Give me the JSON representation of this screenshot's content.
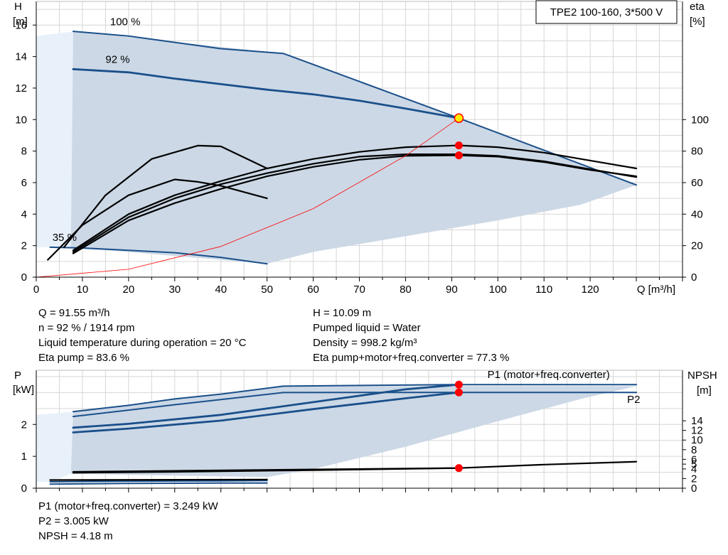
{
  "colors": {
    "curve": "#1a4f8a",
    "area": "#ccd8e6",
    "area_light": "#e8f1fa",
    "grid": "#d6d6d6",
    "duty_point": "#ff0000",
    "duty_marker_fill": "#ffee00",
    "system_curve": "#ff0000"
  },
  "chart_data": [
    {
      "type": "line",
      "title": "TPE2 100-160, 3*500 V",
      "xlabel": "Q [m³/h]",
      "ylabel": [
        "H",
        "[m]"
      ],
      "y2label": [
        "eta",
        "[%]"
      ],
      "xlim": [
        0,
        140
      ],
      "ylim": [
        0,
        17.5
      ],
      "y2lim": [
        0,
        175
      ],
      "x_ticks": [
        0,
        10,
        20,
        30,
        40,
        50,
        60,
        70,
        80,
        90,
        100,
        110,
        120
      ],
      "y_ticks": [
        0,
        2,
        4,
        6,
        8,
        10,
        12,
        14,
        16
      ],
      "y2_ticks": [
        0,
        20,
        40,
        60,
        80,
        100
      ],
      "grid": true,
      "curve_labels": [
        {
          "text": "100 %",
          "x": 16,
          "y": 16.0
        },
        {
          "text": "92 %",
          "x": 15,
          "y": 13.6
        },
        {
          "text": "35 %",
          "x": 3.5,
          "y": 2.3
        }
      ],
      "operating_area": [
        [
          8,
          15.6
        ],
        [
          53.5,
          14.2
        ],
        [
          130,
          5.85
        ],
        [
          118,
          4.6
        ],
        [
          100,
          3.6
        ],
        [
          80,
          2.6
        ],
        [
          60,
          1.6
        ],
        [
          50,
          0.85
        ],
        [
          7.5,
          1.9
        ]
      ],
      "series": [
        {
          "role": "H",
          "speed": "100 %",
          "points": [
            [
              8,
              15.6
            ],
            [
              20,
              15.3
            ],
            [
              30,
              14.9
            ],
            [
              40,
              14.5
            ],
            [
              53.5,
              14.2
            ],
            [
              91.55,
              10.09
            ],
            [
              130,
              5.85
            ]
          ]
        },
        {
          "role": "H",
          "speed": "92 %",
          "points": [
            [
              8,
              13.2
            ],
            [
              20,
              13.0
            ],
            [
              30,
              12.6
            ],
            [
              40,
              12.25
            ],
            [
              50,
              11.9
            ],
            [
              60,
              11.6
            ],
            [
              70,
              11.2
            ],
            [
              80,
              10.7
            ],
            [
              91.55,
              10.09
            ]
          ]
        },
        {
          "role": "H",
          "speed": "35 %",
          "points": [
            [
              3,
              1.9
            ],
            [
              10,
              1.85
            ],
            [
              20,
              1.7
            ],
            [
              30,
              1.55
            ],
            [
              40,
              1.25
            ],
            [
              50,
              0.85
            ]
          ]
        },
        {
          "role": "eta",
          "points": [
            [
              8,
              15
            ],
            [
              20,
              36
            ],
            [
              30,
              47
            ],
            [
              40,
              56
            ],
            [
              50,
              64
            ],
            [
              60,
              70
            ],
            [
              70,
              74.5
            ],
            [
              80,
              77
            ],
            [
              91.55,
              77.3
            ],
            [
              100,
              76.5
            ],
            [
              110,
              73
            ],
            [
              120,
              68
            ],
            [
              130,
              64
            ]
          ]
        },
        {
          "role": "eta",
          "points": [
            [
              8,
              16
            ],
            [
              20,
              38
            ],
            [
              30,
              50
            ],
            [
              40,
              59
            ],
            [
              50,
              66
            ],
            [
              60,
              72
            ],
            [
              70,
              76.5
            ],
            [
              80,
              78
            ],
            [
              91.55,
              78
            ],
            [
              100,
              77
            ],
            [
              110,
              73.5
            ],
            [
              120,
              68.5
            ],
            [
              130,
              63.5
            ]
          ]
        },
        {
          "role": "eta",
          "points": [
            [
              8,
              17
            ],
            [
              20,
              40
            ],
            [
              30,
              52
            ],
            [
              40,
              61
            ],
            [
              50,
              69
            ],
            [
              60,
              75
            ],
            [
              70,
              79.5
            ],
            [
              80,
              82.5
            ],
            [
              91.55,
              83.6
            ],
            [
              100,
              82.5
            ],
            [
              110,
              79
            ],
            [
              120,
              74
            ],
            [
              130,
              69
            ]
          ]
        },
        {
          "role": "eta",
          "points": [
            [
              2.5,
              11
            ],
            [
              10,
              33
            ],
            [
              20,
              52
            ],
            [
              30,
              62
            ],
            [
              35,
              60.5
            ],
            [
              40,
              58
            ],
            [
              50,
              50
            ]
          ]
        },
        {
          "role": "eta",
          "points": [
            [
              6,
              19
            ],
            [
              15,
              52
            ],
            [
              25,
              75
            ],
            [
              35,
              83.5
            ],
            [
              40,
              83
            ],
            [
              50,
              69
            ]
          ]
        },
        {
          "role": "system",
          "points": [
            [
              0,
              0
            ],
            [
              20,
              0.5
            ],
            [
              40,
              1.95
            ],
            [
              60,
              4.35
            ],
            [
              80,
              7.7
            ],
            [
              91.55,
              10.09
            ]
          ]
        }
      ],
      "duty_points": [
        {
          "name": "H",
          "x": 91.55,
          "y": 10.09
        },
        {
          "name": "Eta pump",
          "x": 91.55,
          "y2": 83.6
        },
        {
          "name": "Eta pump+motor+freq.converter",
          "x": 91.55,
          "y2": 77.3
        }
      ]
    },
    {
      "type": "line",
      "xlim": [
        0,
        140
      ],
      "ylim": [
        0,
        3.7
      ],
      "y_ticks": [
        0,
        1,
        2
      ],
      "ylabel": [
        "P",
        "[kW]"
      ],
      "y2label": [
        "NPSH",
        "[m]"
      ],
      "y2lim": [
        0,
        24.5
      ],
      "y2_ticks": [
        0,
        2,
        4,
        5,
        6,
        8,
        10,
        12,
        14
      ],
      "grid": true,
      "series_labels": [
        {
          "text": "P1 (motor+freq.converter)",
          "x": 111,
          "y": 3.45
        },
        {
          "text": "P2",
          "x": 128,
          "y": 2.68
        }
      ],
      "operating_area": [
        [
          8,
          2.4
        ],
        [
          53.5,
          3.2
        ],
        [
          130,
          3.2
        ],
        [
          118,
          2.8
        ],
        [
          100,
          2.1
        ],
        [
          80,
          1.3
        ],
        [
          60,
          0.6
        ],
        [
          50,
          0.35
        ],
        [
          7.5,
          0.45
        ]
      ],
      "series": [
        {
          "role": "P1",
          "speed": "100 %",
          "points": [
            [
              8,
              2.4
            ],
            [
              20,
              2.6
            ],
            [
              30,
              2.8
            ],
            [
              40,
              2.95
            ],
            [
              53.5,
              3.2
            ],
            [
              91.55,
              3.249
            ],
            [
              130,
              3.249
            ]
          ]
        },
        {
          "role": "P2",
          "speed": "100 %",
          "points": [
            [
              8,
              2.25
            ],
            [
              20,
              2.45
            ],
            [
              30,
              2.62
            ],
            [
              40,
              2.78
            ],
            [
              53.5,
              3.0
            ],
            [
              91.55,
              3.005
            ],
            [
              130,
              3.005
            ]
          ]
        },
        {
          "role": "P1",
          "speed": "92 %",
          "points": [
            [
              8,
              1.9
            ],
            [
              20,
              2.02
            ],
            [
              40,
              2.3
            ],
            [
              60,
              2.7
            ],
            [
              80,
              3.1
            ],
            [
              91.55,
              3.249
            ]
          ]
        },
        {
          "role": "P2",
          "speed": "92 %",
          "points": [
            [
              8,
              1.75
            ],
            [
              20,
              1.87
            ],
            [
              40,
              2.12
            ],
            [
              60,
              2.48
            ],
            [
              80,
              2.82
            ],
            [
              91.55,
              3.005
            ]
          ]
        },
        {
          "role": "P1",
          "speed": "35 %",
          "points": [
            [
              3,
              0.2
            ],
            [
              20,
              0.22
            ],
            [
              40,
              0.23
            ],
            [
              50,
              0.24
            ]
          ]
        },
        {
          "role": "P2",
          "speed": "35 %",
          "points": [
            [
              3,
              0.13
            ],
            [
              20,
              0.15
            ],
            [
              40,
              0.16
            ],
            [
              50,
              0.16
            ]
          ]
        },
        {
          "role": "NPSH",
          "points": [
            [
              8,
              3.4
            ],
            [
              30,
              3.6
            ],
            [
              60,
              3.9
            ],
            [
              91.55,
              4.18
            ],
            [
              110,
              4.9
            ],
            [
              130,
              5.5
            ]
          ]
        },
        {
          "role": "NPSH",
          "points": [
            [
              8,
              3.2
            ],
            [
              30,
              3.4
            ],
            [
              60,
              3.75
            ],
            [
              91.55,
              4.18
            ]
          ]
        },
        {
          "role": "NPSH",
          "points": [
            [
              3,
              1.7
            ],
            [
              30,
              1.75
            ],
            [
              50,
              1.8
            ]
          ]
        }
      ],
      "duty_points": [
        {
          "name": "P1",
          "x": 91.55,
          "y": 3.249
        },
        {
          "name": "P2",
          "x": 91.55,
          "y": 3.005
        },
        {
          "name": "NPSH",
          "x": 91.55,
          "y2": 4.18
        }
      ]
    }
  ],
  "info_top_left": [
    "Q = 91.55 m³/h",
    "n = 92 % / 1914 rpm",
    "Liquid temperature during operation = 20 °C",
    "Eta pump = 83.6 %"
  ],
  "info_top_right": [
    "H = 10.09 m",
    "Pumped liquid = Water",
    "Density = 998.2 kg/m³",
    "Eta pump+motor+freq.converter = 77.3 %"
  ],
  "info_bottom": [
    "P1 (motor+freq.converter) = 3.249 kW",
    "P2 = 3.005 kW",
    "NPSH = 4.18 m"
  ]
}
